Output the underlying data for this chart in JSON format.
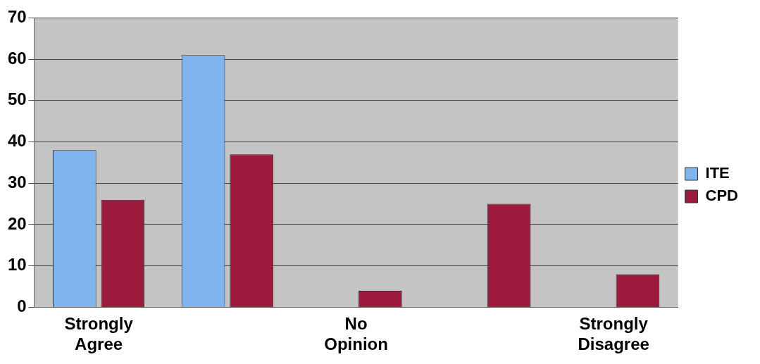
{
  "chart_data": {
    "type": "bar",
    "categories": [
      "Strongly Agree",
      null,
      "No Opinion",
      null,
      "Strongly Disagree"
    ],
    "series": [
      {
        "name": "ITE",
        "color": "#80b4ee",
        "values": [
          38,
          61,
          0,
          0,
          0
        ]
      },
      {
        "name": "CPD",
        "color": "#9c1b3c",
        "values": [
          26,
          37,
          4,
          25,
          8
        ]
      }
    ],
    "ylim": [
      0,
      70
    ],
    "yticks": [
      0,
      10,
      20,
      30,
      40,
      50,
      60,
      70
    ],
    "grid": "y",
    "legend": "right"
  }
}
